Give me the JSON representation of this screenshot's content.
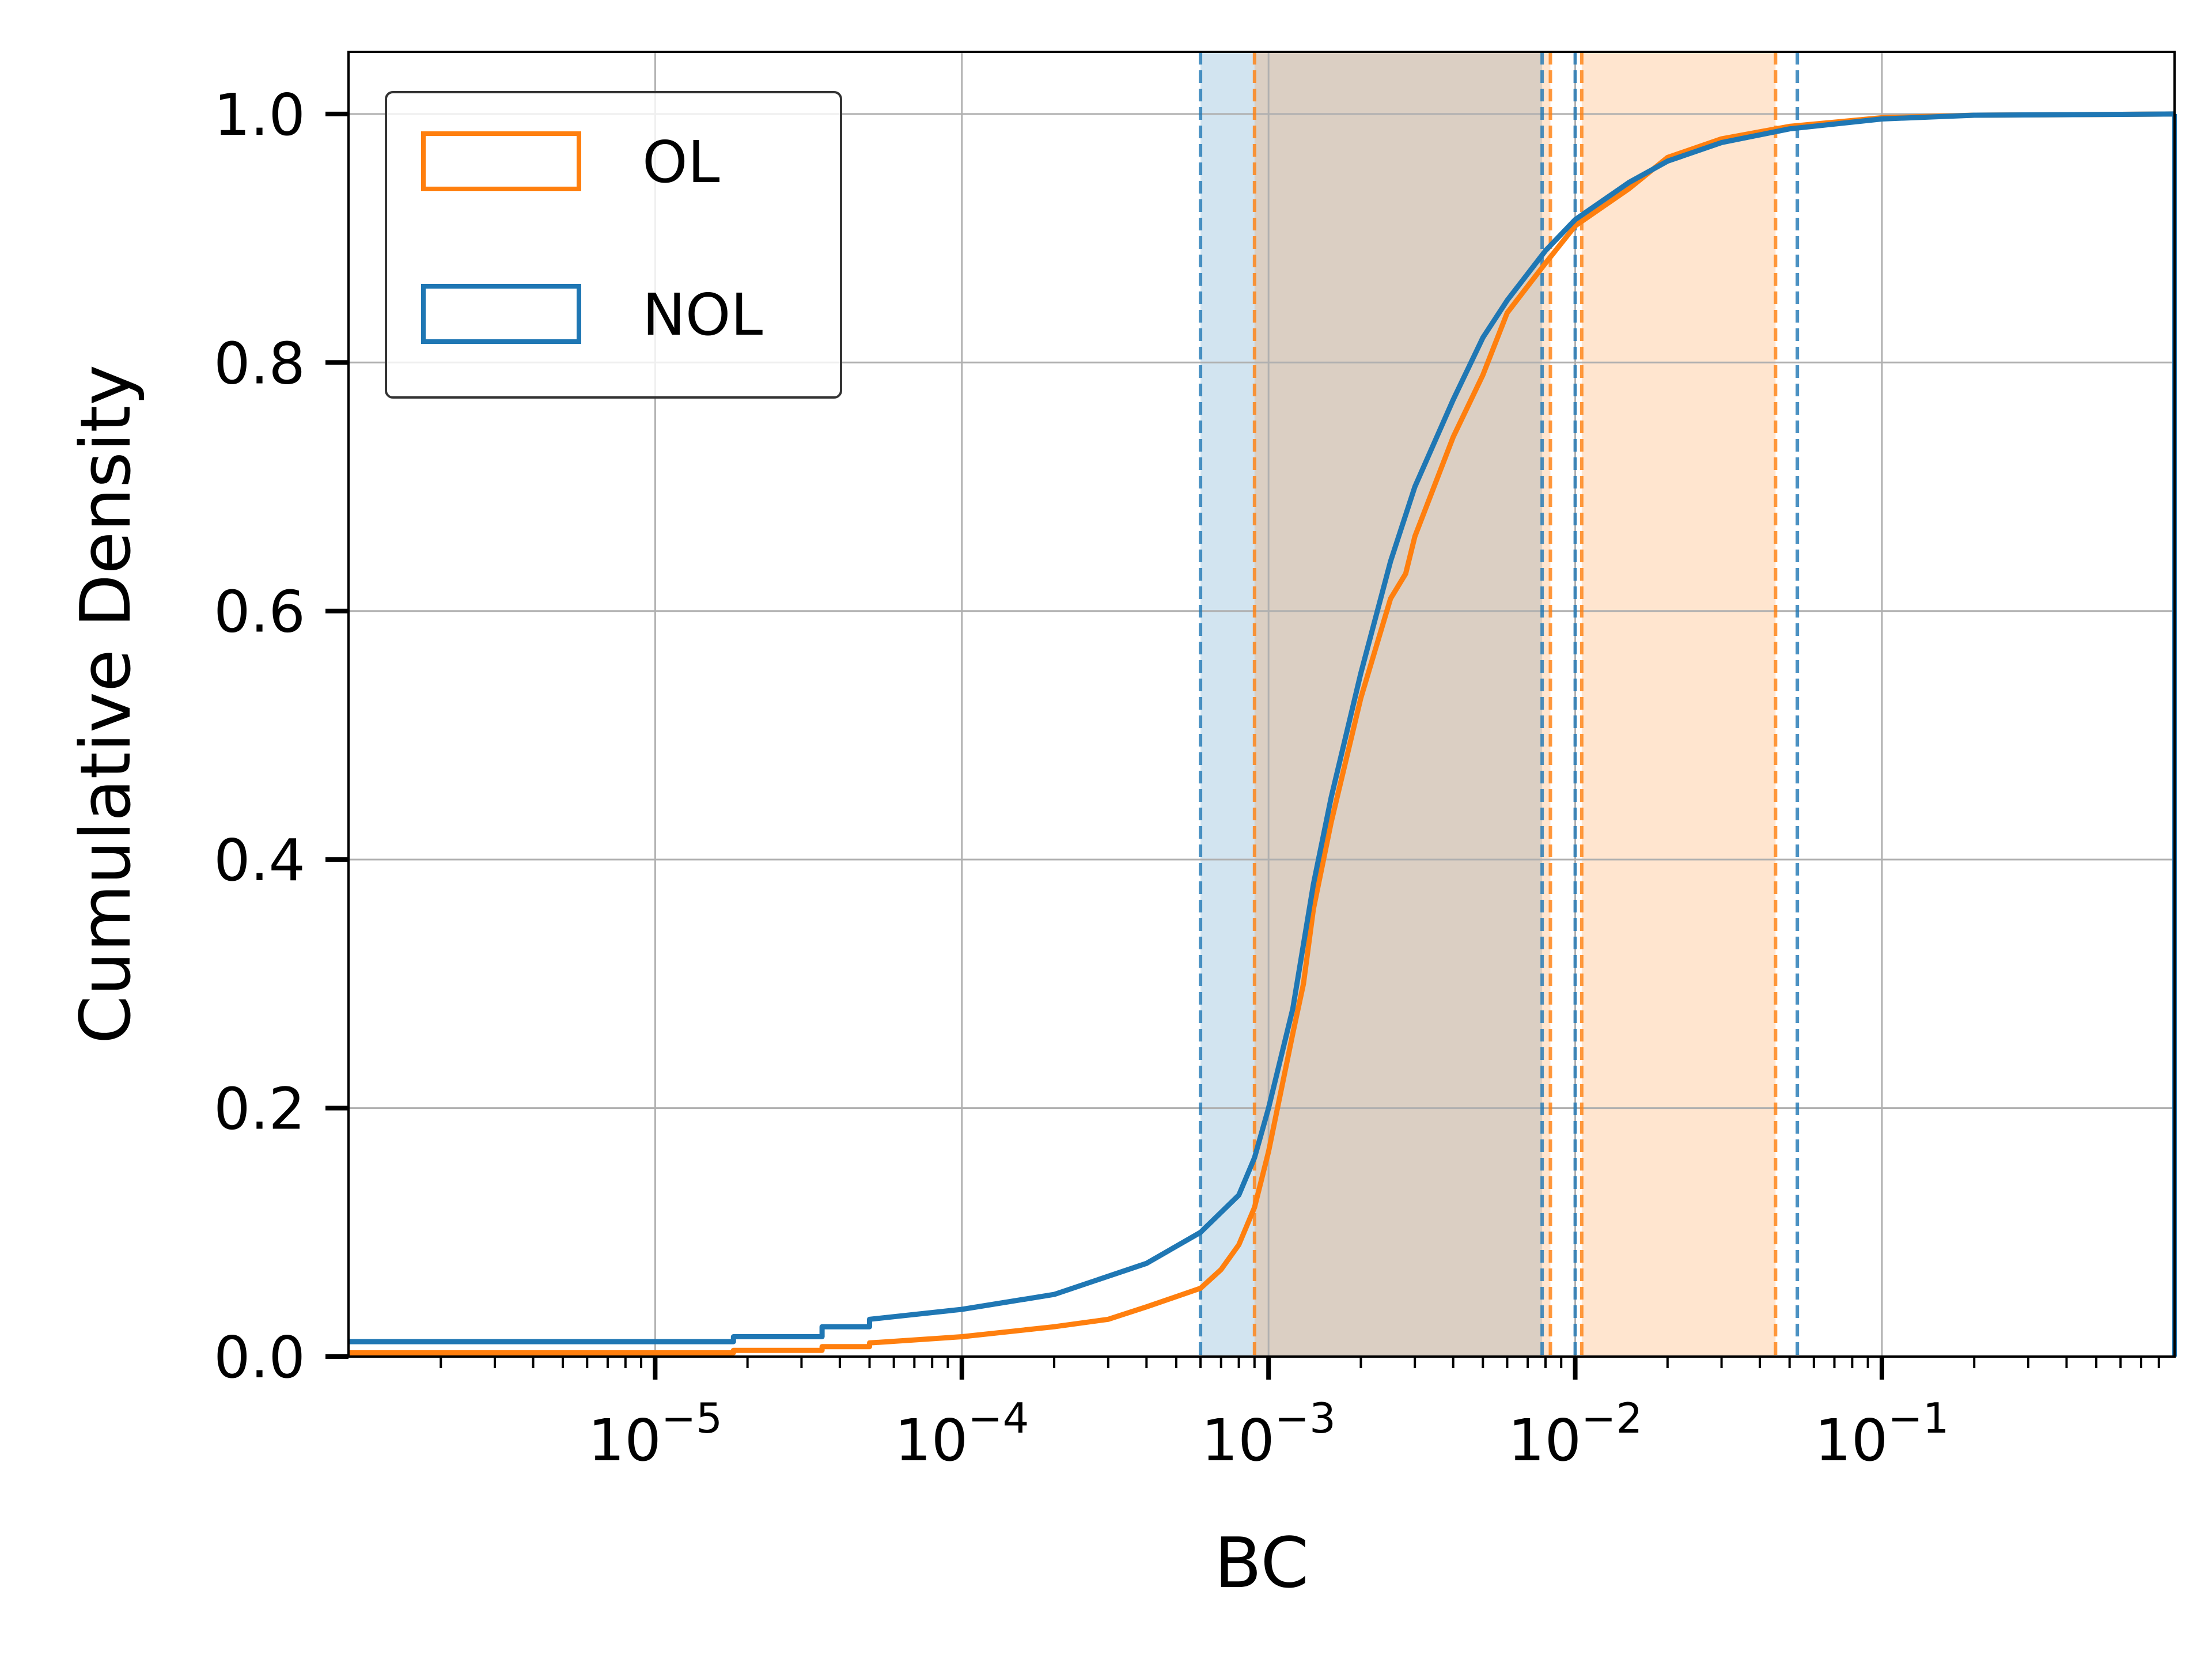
{
  "chart_data": {
    "type": "line",
    "xlabel": "BC",
    "ylabel": "Cumulative Density",
    "xscale": "log",
    "xlim": [
      1e-06,
      0.9
    ],
    "ylim": [
      0,
      1.05
    ],
    "x_ticks": [
      {
        "value": 1e-05,
        "base": "10",
        "exp": "−5"
      },
      {
        "value": 0.0001,
        "base": "10",
        "exp": "−4"
      },
      {
        "value": 0.001,
        "base": "10",
        "exp": "−3"
      },
      {
        "value": 0.01,
        "base": "10",
        "exp": "−2"
      },
      {
        "value": 0.1,
        "base": "10",
        "exp": "−1"
      }
    ],
    "y_ticks": [
      {
        "value": 0.0,
        "label": "0.0"
      },
      {
        "value": 0.2,
        "label": "0.2"
      },
      {
        "value": 0.4,
        "label": "0.4"
      },
      {
        "value": 0.6,
        "label": "0.6"
      },
      {
        "value": 0.8,
        "label": "0.8"
      },
      {
        "value": 1.0,
        "label": "1.0"
      }
    ],
    "grid": true,
    "legend_position": "top-left",
    "series": [
      {
        "name": "OL",
        "color": "#ff7f0e",
        "points": [
          [
            1e-06,
            0.003
          ],
          [
            1.8e-05,
            0.003
          ],
          [
            1.8e-05,
            0.005
          ],
          [
            3.5e-05,
            0.005
          ],
          [
            3.5e-05,
            0.008
          ],
          [
            5e-05,
            0.008
          ],
          [
            5e-05,
            0.011
          ],
          [
            0.0001,
            0.016
          ],
          [
            0.0002,
            0.024
          ],
          [
            0.0003,
            0.03
          ],
          [
            0.0004,
            0.04
          ],
          [
            0.0006,
            0.055
          ],
          [
            0.0007,
            0.07
          ],
          [
            0.0008,
            0.09
          ],
          [
            0.0009,
            0.12
          ],
          [
            0.001,
            0.165
          ],
          [
            0.0012,
            0.26
          ],
          [
            0.0013,
            0.3
          ],
          [
            0.0014,
            0.36
          ],
          [
            0.0016,
            0.43
          ],
          [
            0.002,
            0.53
          ],
          [
            0.0025,
            0.61
          ],
          [
            0.0028,
            0.63
          ],
          [
            0.003,
            0.66
          ],
          [
            0.004,
            0.74
          ],
          [
            0.005,
            0.79
          ],
          [
            0.006,
            0.84
          ],
          [
            0.008,
            0.88
          ],
          [
            0.01,
            0.91
          ],
          [
            0.015,
            0.94
          ],
          [
            0.02,
            0.965
          ],
          [
            0.03,
            0.98
          ],
          [
            0.05,
            0.99
          ],
          [
            0.1,
            0.997
          ],
          [
            0.2,
            0.999
          ],
          [
            0.9,
            1.0
          ]
        ]
      },
      {
        "name": "NOL",
        "color": "#1f77b4",
        "points": [
          [
            1e-06,
            0.012
          ],
          [
            1.8e-05,
            0.012
          ],
          [
            1.8e-05,
            0.016
          ],
          [
            3.5e-05,
            0.016
          ],
          [
            3.5e-05,
            0.024
          ],
          [
            5e-05,
            0.024
          ],
          [
            5e-05,
            0.03
          ],
          [
            0.0001,
            0.038
          ],
          [
            0.0002,
            0.05
          ],
          [
            0.0004,
            0.075
          ],
          [
            0.0006,
            0.1
          ],
          [
            0.0008,
            0.13
          ],
          [
            0.0009,
            0.16
          ],
          [
            0.001,
            0.2
          ],
          [
            0.0012,
            0.28
          ],
          [
            0.0014,
            0.38
          ],
          [
            0.0016,
            0.45
          ],
          [
            0.002,
            0.55
          ],
          [
            0.0025,
            0.64
          ],
          [
            0.003,
            0.7
          ],
          [
            0.004,
            0.77
          ],
          [
            0.005,
            0.82
          ],
          [
            0.006,
            0.85
          ],
          [
            0.008,
            0.89
          ],
          [
            0.01,
            0.915
          ],
          [
            0.015,
            0.945
          ],
          [
            0.02,
            0.962
          ],
          [
            0.03,
            0.977
          ],
          [
            0.05,
            0.988
          ],
          [
            0.1,
            0.996
          ],
          [
            0.2,
            0.999
          ],
          [
            0.9,
            1.0
          ]
        ]
      }
    ],
    "bands": [
      {
        "series": "NOL",
        "x0": 0.0006,
        "x1": 0.0078,
        "fill": "#1f77b4"
      },
      {
        "series": "OL",
        "x0": 0.0009,
        "x1": 0.0083,
        "fill": "#ff7f0e"
      },
      {
        "series": "OL",
        "x0": 0.0105,
        "x1": 0.045,
        "fill": "#ff7f0e"
      }
    ],
    "vlines": [
      {
        "series": "NOL",
        "x": 0.0006,
        "color": "#1f77b4"
      },
      {
        "series": "OL",
        "x": 0.0009,
        "color": "#ff7f0e"
      },
      {
        "series": "NOL",
        "x": 0.0078,
        "color": "#1f77b4"
      },
      {
        "series": "OL",
        "x": 0.0083,
        "color": "#ff7f0e"
      },
      {
        "series": "NOL",
        "x": 0.01,
        "color": "#1f77b4"
      },
      {
        "series": "OL",
        "x": 0.0105,
        "color": "#ff7f0e"
      },
      {
        "series": "OL",
        "x": 0.045,
        "color": "#ff7f0e"
      },
      {
        "series": "NOL",
        "x": 0.053,
        "color": "#1f77b4"
      }
    ]
  }
}
